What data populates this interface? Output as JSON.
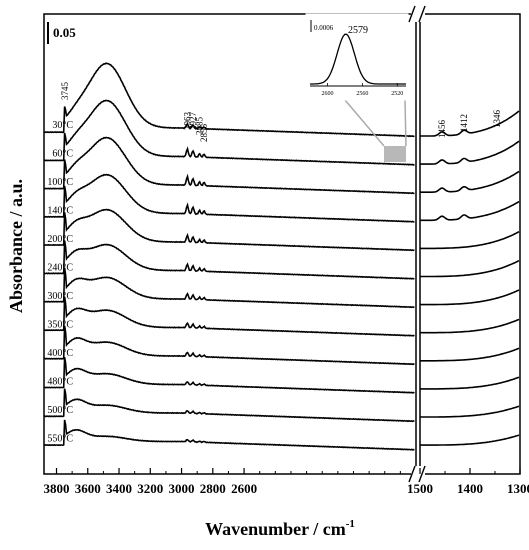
{
  "chart_data": {
    "type": "line",
    "xlabel": "Wavenumber / cm",
    "xlabel_superscript": "-1",
    "ylabel": "Absorbance / a.u.",
    "scale_bar_label": "0.05",
    "x_axis_break": true,
    "left_panel": {
      "xlim": [
        3880,
        1500
      ],
      "ticks": [
        "3800",
        "3600",
        "3400",
        "3200",
        "3000",
        "2800",
        "2600"
      ],
      "tick_values": [
        3800,
        3600,
        3400,
        3200,
        3000,
        2800,
        2600
      ]
    },
    "right_panel": {
      "xlim": [
        1500,
        1300
      ],
      "ticks": [
        "1500",
        "1400",
        "1300"
      ],
      "tick_values": [
        1500,
        1400,
        1300
      ]
    },
    "series": [
      {
        "name": "30°C",
        "broad_band": 0.15,
        "ch": 0.01,
        "oh": 0.03,
        "tail": 0.06
      },
      {
        "name": "60°C",
        "broad_band": 0.13,
        "ch": 0.018,
        "oh": 0.035,
        "tail": 0.055
      },
      {
        "name": "100°C",
        "broad_band": 0.11,
        "ch": 0.02,
        "oh": 0.04,
        "tail": 0.05
      },
      {
        "name": "140°C",
        "broad_band": 0.09,
        "ch": 0.02,
        "oh": 0.045,
        "tail": 0.045
      },
      {
        "name": "200°C",
        "broad_band": 0.075,
        "ch": 0.016,
        "oh": 0.05,
        "tail": 0.04
      },
      {
        "name": "240°C",
        "broad_band": 0.06,
        "ch": 0.015,
        "oh": 0.052,
        "tail": 0.038
      },
      {
        "name": "300°C",
        "broad_band": 0.05,
        "ch": 0.013,
        "oh": 0.055,
        "tail": 0.035
      },
      {
        "name": "350°C",
        "broad_band": 0.04,
        "ch": 0.011,
        "oh": 0.055,
        "tail": 0.032
      },
      {
        "name": "400°C",
        "broad_band": 0.032,
        "ch": 0.009,
        "oh": 0.055,
        "tail": 0.03
      },
      {
        "name": "480°C",
        "broad_band": 0.025,
        "ch": 0.007,
        "oh": 0.05,
        "tail": 0.028
      },
      {
        "name": "500°C",
        "broad_band": 0.018,
        "ch": 0.006,
        "oh": 0.045,
        "tail": 0.026
      },
      {
        "name": "550°C",
        "broad_band": 0.012,
        "ch": 0.005,
        "oh": 0.04,
        "tail": 0.024
      }
    ],
    "annotations": [
      {
        "text": "3745",
        "x": 3745
      },
      {
        "text": "2963",
        "x": 2963
      },
      {
        "text": "2927",
        "x": 2927
      },
      {
        "text": "2885",
        "x": 2885
      },
      {
        "text": "2856",
        "x": 2856
      },
      {
        "text": "1456",
        "x": 1456
      },
      {
        "text": "1412",
        "x": 1412
      },
      {
        "text": "1346",
        "x": 1346
      }
    ],
    "inset": {
      "peak_label": "2579",
      "scale_label": "0.0006",
      "ticks": [
        "2600",
        "2560",
        "2520"
      ],
      "highlight_region": [
        2600,
        2560
      ]
    }
  }
}
